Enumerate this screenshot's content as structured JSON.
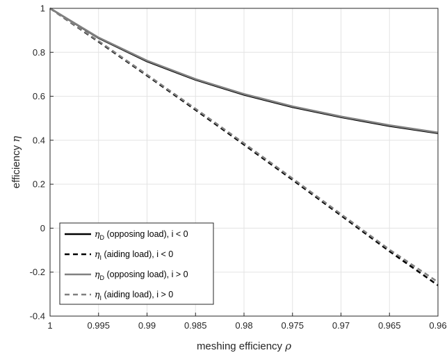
{
  "chart_data": {
    "type": "line",
    "title": "",
    "xlabel": "meshing efficiency ",
    "xlabel_symbol": "ρ",
    "ylabel": "efficiency ",
    "ylabel_symbol": "η",
    "xlim": [
      0.96,
      1
    ],
    "x_reversed": true,
    "ylim": [
      -0.4,
      1
    ],
    "grid": true,
    "x_ticks": [
      1,
      0.995,
      0.99,
      0.985,
      0.98,
      0.975,
      0.97,
      0.965,
      0.96
    ],
    "x_tick_labels": [
      "1",
      "0.995",
      "0.99",
      "0.985",
      "0.98",
      "0.975",
      "0.97",
      "0.965",
      "0.96"
    ],
    "y_ticks": [
      1,
      0.8,
      0.6,
      0.4,
      0.2,
      0,
      -0.2,
      -0.4
    ],
    "y_tick_labels": [
      "1",
      "0.8",
      "0.6",
      "0.4",
      "0.2",
      "0",
      "-0.2",
      "-0.4"
    ],
    "legend_position": "bottom-left",
    "x": [
      1,
      0.995,
      0.99,
      0.985,
      0.98,
      0.975,
      0.97,
      0.965,
      0.96
    ],
    "series": [
      {
        "legend_symbol": "η",
        "legend_sub": "D",
        "legend_rest": " (opposing load), i < 0",
        "color": "#000000",
        "dash": "solid",
        "values": [
          1.0,
          0.865,
          0.759,
          0.675,
          0.607,
          0.551,
          0.505,
          0.465,
          0.432
        ]
      },
      {
        "legend_symbol": "η",
        "legend_sub": "I",
        "legend_rest": " (aiding load), i < 0",
        "color": "#000000",
        "dash": "dashed",
        "values": [
          1.0,
          0.848,
          0.694,
          0.538,
          0.38,
          0.22,
          0.058,
          -0.105,
          -0.26
        ]
      },
      {
        "legend_symbol": "η",
        "legend_sub": "D",
        "legend_rest": " (opposing load), i > 0",
        "color": "#808080",
        "dash": "solid",
        "values": [
          1.0,
          0.867,
          0.762,
          0.678,
          0.61,
          0.554,
          0.508,
          0.468,
          0.435
        ]
      },
      {
        "legend_symbol": "η",
        "legend_sub": "I",
        "legend_rest": " (aiding load), i > 0",
        "color": "#808080",
        "dash": "dashed",
        "values": [
          1.0,
          0.851,
          0.698,
          0.543,
          0.386,
          0.226,
          0.064,
          -0.098,
          -0.245
        ]
      }
    ]
  }
}
